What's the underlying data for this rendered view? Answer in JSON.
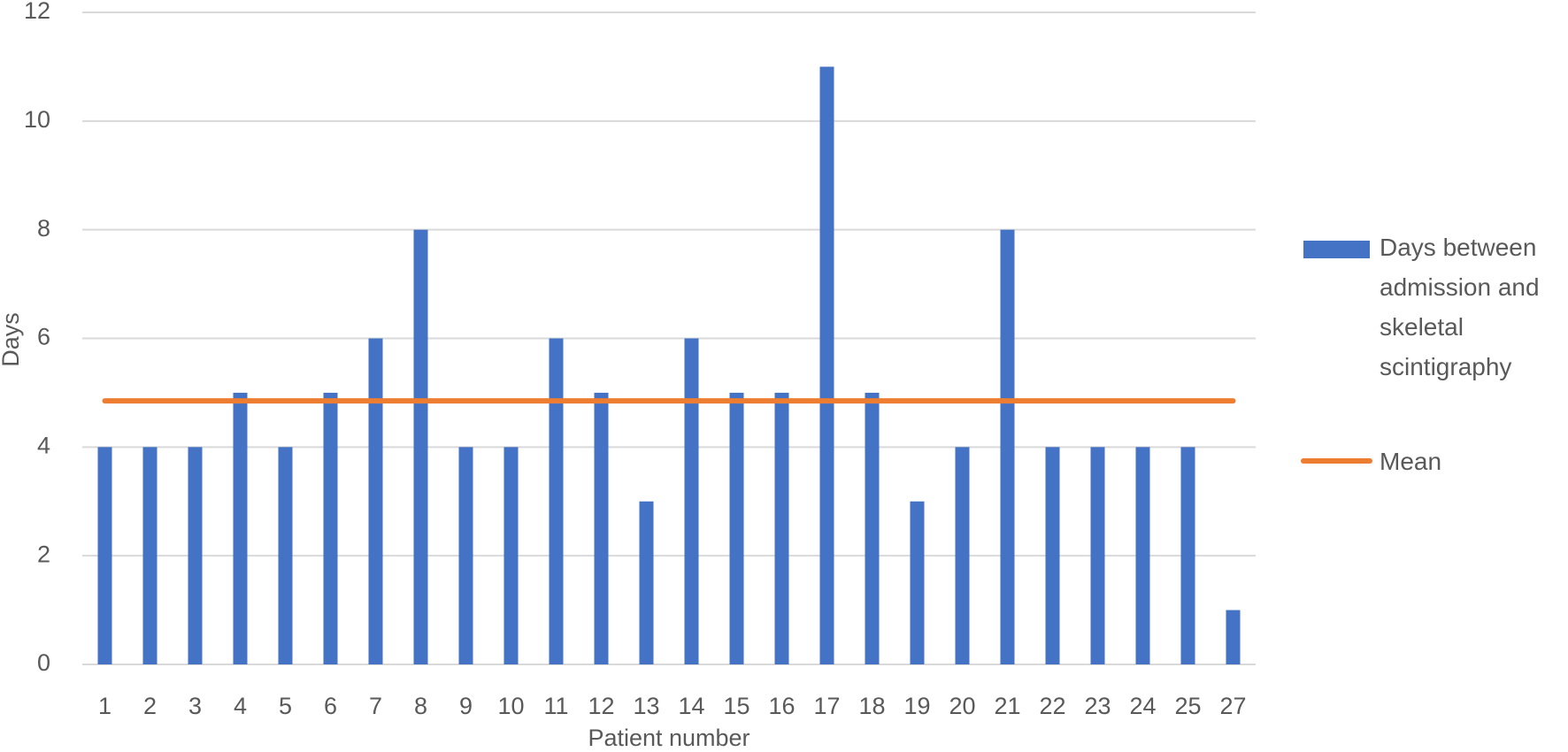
{
  "chart_data": {
    "type": "bar",
    "x_label": "Patient number",
    "y_label": "Days",
    "categories": [
      "1",
      "2",
      "3",
      "4",
      "5",
      "6",
      "7",
      "8",
      "9",
      "10",
      "11",
      "12",
      "13",
      "14",
      "15",
      "16",
      "17",
      "18",
      "19",
      "20",
      "21",
      "22",
      "23",
      "24",
      "25",
      "27"
    ],
    "series": [
      {
        "name": "Days between admission and skeletal scintigraphy",
        "type": "bar",
        "color": "#4472c4",
        "values": [
          4,
          4,
          4,
          5,
          4,
          5,
          6,
          8,
          4,
          4,
          6,
          5,
          3,
          6,
          5,
          5,
          11,
          5,
          3,
          4,
          8,
          4,
          4,
          4,
          4,
          1
        ]
      },
      {
        "name": "Mean",
        "type": "line",
        "color": "#ed7d31",
        "values": [
          4.85,
          4.85,
          4.85,
          4.85,
          4.85,
          4.85,
          4.85,
          4.85,
          4.85,
          4.85,
          4.85,
          4.85,
          4.85,
          4.85,
          4.85,
          4.85,
          4.85,
          4.85,
          4.85,
          4.85,
          4.85,
          4.85,
          4.85,
          4.85,
          4.85,
          4.85
        ]
      }
    ],
    "ylim": [
      0,
      12
    ],
    "yticks": [
      0,
      2,
      4,
      6,
      8,
      10,
      12
    ],
    "grid": true,
    "legend": "right"
  }
}
